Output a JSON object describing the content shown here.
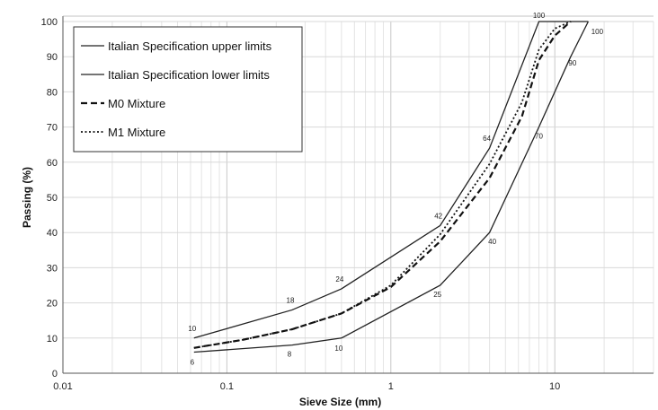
{
  "chart_data": {
    "type": "line",
    "xlabel": "Sieve Size (mm)",
    "ylabel": "Passing (%)",
    "xscale": "log",
    "xlim": [
      0.01,
      40
    ],
    "ylim": [
      0,
      100
    ],
    "x_ticks": [
      "0.01",
      "0.1",
      "1",
      "10"
    ],
    "y_ticks": [
      "0",
      "10",
      "20",
      "30",
      "40",
      "50",
      "60",
      "70",
      "80",
      "90",
      "100"
    ],
    "grid": true,
    "legend_position": "top-left",
    "series": [
      {
        "name": "Italian Specification upper limits",
        "style": "solid",
        "color": "#222222",
        "x": [
          0.063,
          0.25,
          0.5,
          2,
          4,
          8,
          16
        ],
        "y": [
          10,
          18,
          24,
          42,
          64,
          100,
          100
        ],
        "point_labels": [
          "10",
          "18",
          "24",
          "42",
          "64",
          "100",
          ""
        ]
      },
      {
        "name": "Italian Specification lower limits",
        "style": "solid",
        "color": "#222222",
        "x": [
          0.063,
          0.25,
          0.5,
          2,
          4,
          8,
          12.5,
          16
        ],
        "y": [
          6,
          8,
          10,
          25,
          40,
          70,
          90,
          100
        ],
        "point_labels": [
          "6",
          "8",
          "10",
          "25",
          "40",
          "70",
          "90",
          "100"
        ]
      },
      {
        "name": "M0 Mixture",
        "style": "dashed",
        "color": "#111111",
        "x": [
          0.063,
          0.125,
          0.25,
          0.5,
          1,
          2,
          4,
          6.3,
          8,
          10,
          12.5
        ],
        "y": [
          7.2,
          9.5,
          12.5,
          17,
          24.5,
          37.5,
          55.5,
          73,
          89,
          96,
          100
        ],
        "point_labels": []
      },
      {
        "name": "M1 Mixture",
        "style": "dotted",
        "color": "#111111",
        "x": [
          0.063,
          0.125,
          0.25,
          0.5,
          1,
          2,
          4,
          6.3,
          8,
          10,
          12.5
        ],
        "y": [
          7.2,
          9.5,
          12.5,
          17,
          25,
          39.5,
          59.5,
          77,
          92,
          98,
          100
        ],
        "point_labels": []
      }
    ]
  }
}
